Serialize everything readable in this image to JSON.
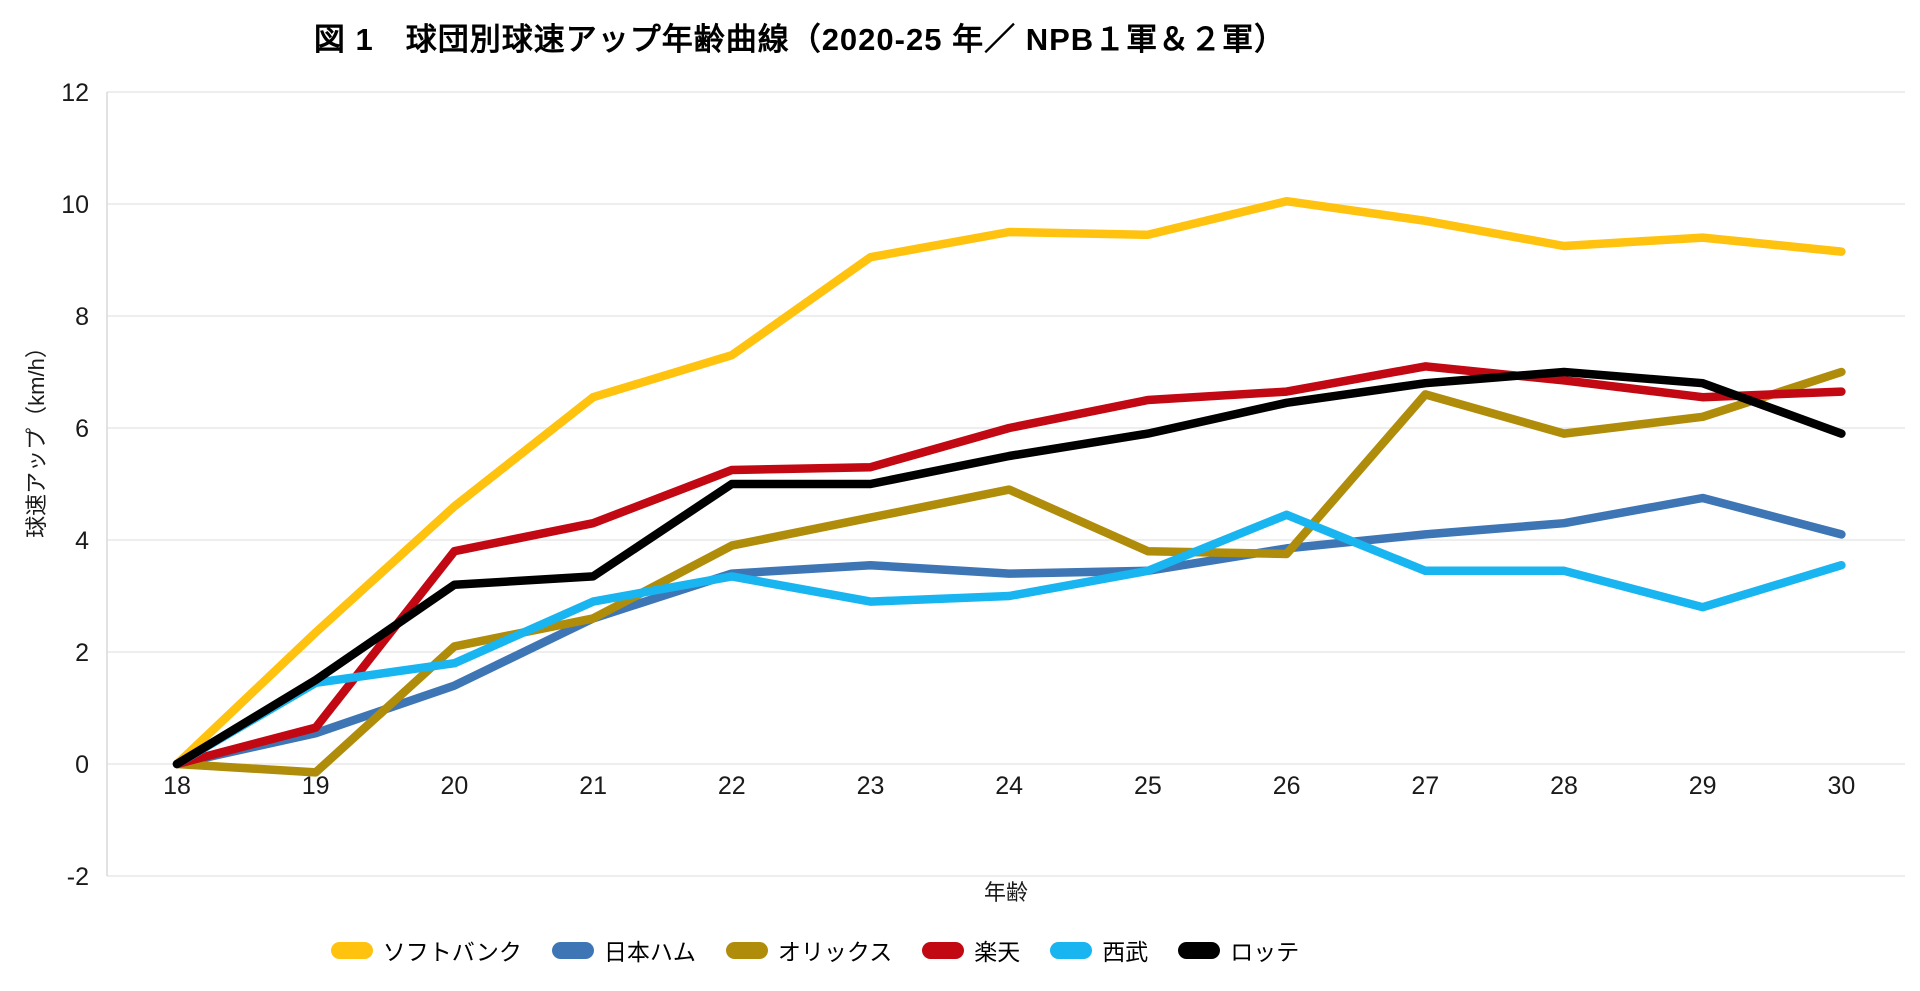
{
  "title": "図 1　球団別球速アップ年齢曲線（2020-25 年／ NPB１軍＆２軍）",
  "chart_data": {
    "type": "line",
    "x": [
      18,
      19,
      20,
      21,
      22,
      23,
      24,
      25,
      26,
      27,
      28,
      29,
      30
    ],
    "xlabel": "年齢",
    "ylabel": "球速アップ（km/h）",
    "ylim": [
      -2,
      12
    ],
    "yticks": [
      -2,
      0,
      2,
      4,
      6,
      8,
      10,
      12
    ],
    "grid": true,
    "legend_position": "bottom",
    "axis_text_color": "#1a1a1a",
    "gridline_color": "#e8e8e8",
    "axis_line_color": "#d9d9d9",
    "series": [
      {
        "name": "ソフトバンク",
        "color": "#FFC20E",
        "values": [
          0,
          2.35,
          4.6,
          6.55,
          7.3,
          9.05,
          9.5,
          9.45,
          10.05,
          9.7,
          9.25,
          9.4,
          9.15
        ]
      },
      {
        "name": "日本ハム",
        "color": "#3E76B5",
        "values": [
          0,
          0.55,
          1.4,
          2.6,
          3.4,
          3.55,
          3.4,
          3.45,
          3.85,
          4.1,
          4.3,
          4.75,
          4.1
        ]
      },
      {
        "name": "オリックス",
        "color": "#B08C0B",
        "values": [
          0,
          -0.15,
          2.1,
          2.6,
          3.9,
          4.4,
          4.9,
          3.8,
          3.75,
          6.6,
          5.9,
          6.2,
          7.0
        ]
      },
      {
        "name": "楽天",
        "color": "#C10813",
        "values": [
          0,
          0.65,
          3.8,
          4.3,
          5.25,
          5.3,
          6.0,
          6.5,
          6.65,
          7.1,
          6.85,
          6.55,
          6.65
        ]
      },
      {
        "name": "西武",
        "color": "#18B5F1",
        "values": [
          0,
          1.45,
          1.8,
          2.9,
          3.35,
          2.9,
          3.0,
          3.45,
          4.45,
          3.45,
          3.45,
          2.8,
          3.55
        ]
      },
      {
        "name": "ロッテ",
        "color": "#000000",
        "values": [
          0,
          1.5,
          3.2,
          3.35,
          5.0,
          5.0,
          5.5,
          5.9,
          6.45,
          6.8,
          7.0,
          6.8,
          5.9
        ]
      }
    ]
  }
}
